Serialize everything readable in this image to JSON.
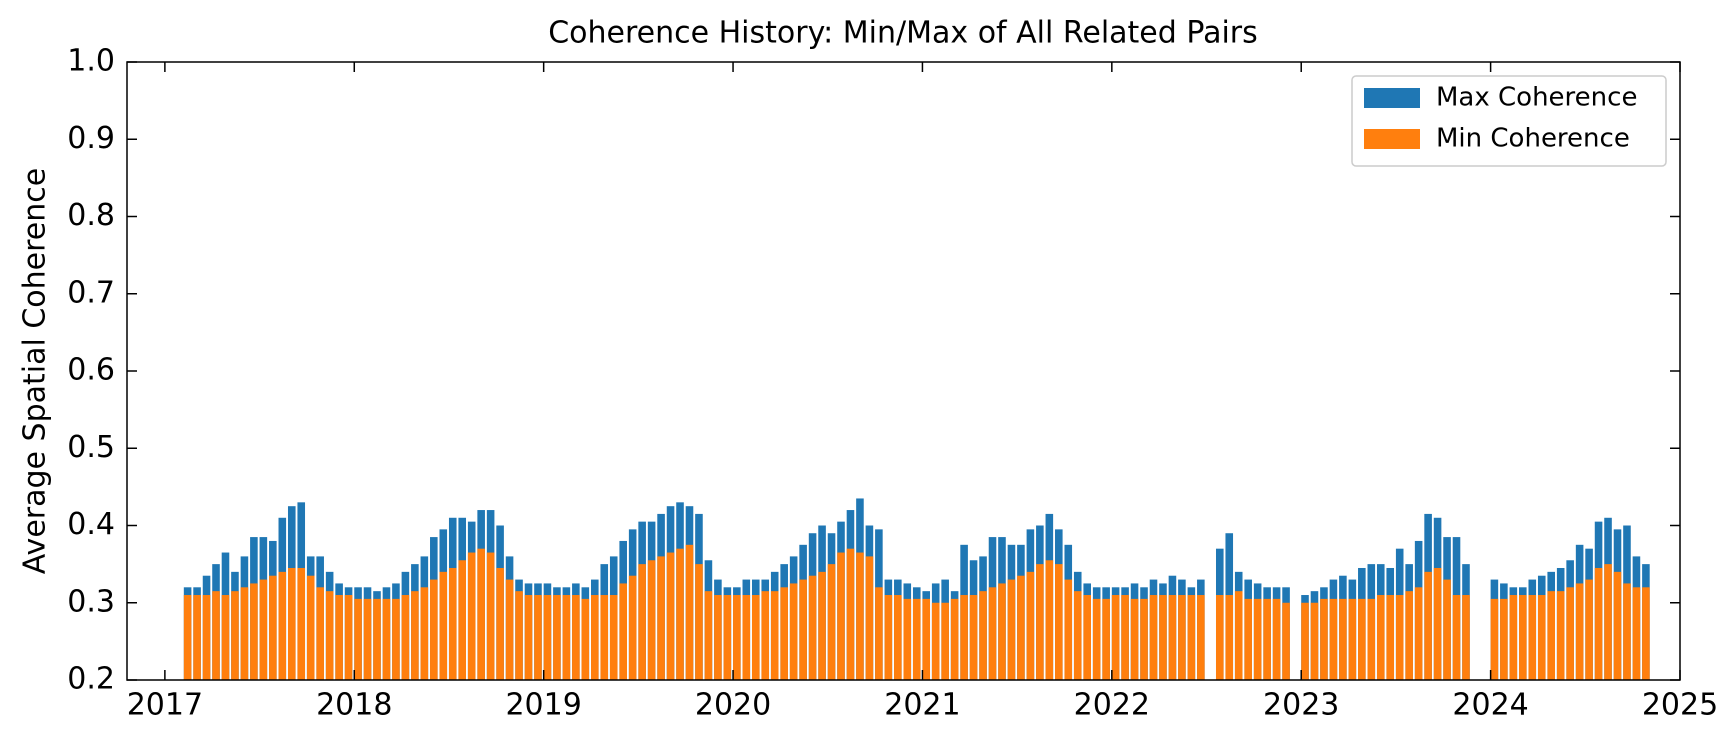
{
  "chart_data": {
    "type": "bar",
    "title": "Coherence History: Min/Max of All Related Pairs",
    "y_label": "Average Spatial Coherence",
    "x": [
      2017.12,
      2017.17,
      2017.22,
      2017.27,
      2017.32,
      2017.37,
      2017.42,
      2017.47,
      2017.52,
      2017.57,
      2017.62,
      2017.67,
      2017.72,
      2017.77,
      2017.82,
      2017.87,
      2017.92,
      2017.97,
      2018.02,
      2018.07,
      2018.12,
      2018.17,
      2018.22,
      2018.27,
      2018.32,
      2018.37,
      2018.42,
      2018.47,
      2018.52,
      2018.57,
      2018.62,
      2018.67,
      2018.72,
      2018.77,
      2018.82,
      2018.87,
      2018.92,
      2018.97,
      2019.02,
      2019.07,
      2019.12,
      2019.17,
      2019.22,
      2019.27,
      2019.32,
      2019.37,
      2019.42,
      2019.47,
      2019.52,
      2019.57,
      2019.62,
      2019.67,
      2019.72,
      2019.77,
      2019.82,
      2019.87,
      2019.92,
      2019.97,
      2020.02,
      2020.07,
      2020.12,
      2020.17,
      2020.22,
      2020.27,
      2020.32,
      2020.37,
      2020.42,
      2020.47,
      2020.52,
      2020.57,
      2020.62,
      2020.67,
      2020.72,
      2020.77,
      2020.82,
      2020.87,
      2020.92,
      2020.97,
      2021.02,
      2021.07,
      2021.12,
      2021.17,
      2021.22,
      2021.27,
      2021.32,
      2021.37,
      2021.42,
      2021.47,
      2021.52,
      2021.57,
      2021.62,
      2021.67,
      2021.72,
      2021.77,
      2021.82,
      2021.87,
      2021.92,
      2021.97,
      2022.02,
      2022.07,
      2022.12,
      2022.17,
      2022.22,
      2022.27,
      2022.32,
      2022.37,
      2022.42,
      2022.47,
      2022.57,
      2022.62,
      2022.67,
      2022.72,
      2022.77,
      2022.82,
      2022.87,
      2022.92,
      2023.02,
      2023.07,
      2023.12,
      2023.17,
      2023.22,
      2023.27,
      2023.32,
      2023.37,
      2023.42,
      2023.47,
      2023.52,
      2023.57,
      2023.62,
      2023.67,
      2023.72,
      2023.77,
      2023.82,
      2023.87,
      2024.02,
      2024.07,
      2024.12,
      2024.17,
      2024.22,
      2024.27,
      2024.32,
      2024.37,
      2024.42,
      2024.47,
      2024.52,
      2024.57,
      2024.62,
      2024.67,
      2024.72,
      2024.77,
      2024.82
    ],
    "series": [
      {
        "name": "Max Coherence",
        "color": "#1f77b4",
        "values": [
          0.32,
          0.32,
          0.335,
          0.35,
          0.365,
          0.34,
          0.36,
          0.385,
          0.385,
          0.38,
          0.41,
          0.425,
          0.43,
          0.36,
          0.36,
          0.34,
          0.325,
          0.32,
          0.32,
          0.32,
          0.315,
          0.32,
          0.325,
          0.34,
          0.35,
          0.36,
          0.385,
          0.395,
          0.41,
          0.41,
          0.405,
          0.42,
          0.42,
          0.4,
          0.36,
          0.33,
          0.325,
          0.325,
          0.325,
          0.32,
          0.32,
          0.325,
          0.32,
          0.33,
          0.35,
          0.36,
          0.38,
          0.395,
          0.405,
          0.405,
          0.415,
          0.425,
          0.43,
          0.425,
          0.415,
          0.355,
          0.33,
          0.32,
          0.32,
          0.33,
          0.33,
          0.33,
          0.34,
          0.35,
          0.36,
          0.375,
          0.39,
          0.4,
          0.39,
          0.405,
          0.42,
          0.435,
          0.4,
          0.395,
          0.33,
          0.33,
          0.325,
          0.32,
          0.315,
          0.325,
          0.33,
          0.315,
          0.375,
          0.355,
          0.36,
          0.385,
          0.385,
          0.375,
          0.375,
          0.395,
          0.4,
          0.415,
          0.395,
          0.375,
          0.34,
          0.325,
          0.32,
          0.32,
          0.32,
          0.32,
          0.325,
          0.32,
          0.33,
          0.325,
          0.335,
          0.33,
          0.32,
          0.33,
          0.37,
          0.39,
          0.34,
          0.33,
          0.325,
          0.32,
          0.32,
          0.32,
          0.31,
          0.315,
          0.32,
          0.33,
          0.335,
          0.33,
          0.345,
          0.35,
          0.35,
          0.345,
          0.37,
          0.35,
          0.38,
          0.415,
          0.41,
          0.385,
          0.385,
          0.35,
          0.33,
          0.325,
          0.32,
          0.32,
          0.33,
          0.335,
          0.34,
          0.345,
          0.355,
          0.375,
          0.37,
          0.405,
          0.41,
          0.395,
          0.4,
          0.36,
          0.35
        ]
      },
      {
        "name": "Min Coherence",
        "color": "#ff7f0e",
        "values": [
          0.31,
          0.31,
          0.31,
          0.315,
          0.31,
          0.315,
          0.32,
          0.325,
          0.33,
          0.335,
          0.34,
          0.345,
          0.345,
          0.335,
          0.32,
          0.315,
          0.31,
          0.31,
          0.305,
          0.305,
          0.305,
          0.305,
          0.305,
          0.31,
          0.315,
          0.32,
          0.33,
          0.34,
          0.345,
          0.355,
          0.365,
          0.37,
          0.365,
          0.345,
          0.33,
          0.315,
          0.31,
          0.31,
          0.31,
          0.31,
          0.31,
          0.31,
          0.305,
          0.31,
          0.31,
          0.31,
          0.325,
          0.335,
          0.35,
          0.355,
          0.36,
          0.365,
          0.37,
          0.375,
          0.35,
          0.315,
          0.31,
          0.31,
          0.31,
          0.31,
          0.31,
          0.315,
          0.315,
          0.32,
          0.325,
          0.33,
          0.335,
          0.34,
          0.35,
          0.365,
          0.37,
          0.365,
          0.36,
          0.32,
          0.31,
          0.31,
          0.305,
          0.305,
          0.305,
          0.3,
          0.3,
          0.305,
          0.31,
          0.31,
          0.315,
          0.32,
          0.325,
          0.33,
          0.335,
          0.34,
          0.35,
          0.355,
          0.35,
          0.33,
          0.315,
          0.31,
          0.305,
          0.305,
          0.31,
          0.31,
          0.305,
          0.305,
          0.31,
          0.31,
          0.31,
          0.31,
          0.31,
          0.31,
          0.31,
          0.31,
          0.315,
          0.305,
          0.305,
          0.305,
          0.305,
          0.3,
          0.3,
          0.3,
          0.305,
          0.305,
          0.305,
          0.305,
          0.305,
          0.305,
          0.31,
          0.31,
          0.31,
          0.315,
          0.32,
          0.34,
          0.345,
          0.33,
          0.31,
          0.31,
          0.305,
          0.305,
          0.31,
          0.31,
          0.31,
          0.31,
          0.315,
          0.315,
          0.32,
          0.325,
          0.33,
          0.345,
          0.35,
          0.34,
          0.325,
          0.32,
          0.32
        ]
      }
    ],
    "bar_width": 0.04,
    "xlim": [
      2016.8,
      2025
    ],
    "xticks": [
      2017,
      2018,
      2019,
      2020,
      2021,
      2022,
      2023,
      2024,
      2025
    ],
    "ylim": [
      0.2,
      1
    ],
    "yticks": [
      0.2,
      0.3,
      0.4,
      0.5,
      0.6,
      0.7,
      0.8,
      0.9,
      {
        "value": 1,
        "label": "1.0"
      }
    ],
    "legend": "upper right"
  }
}
